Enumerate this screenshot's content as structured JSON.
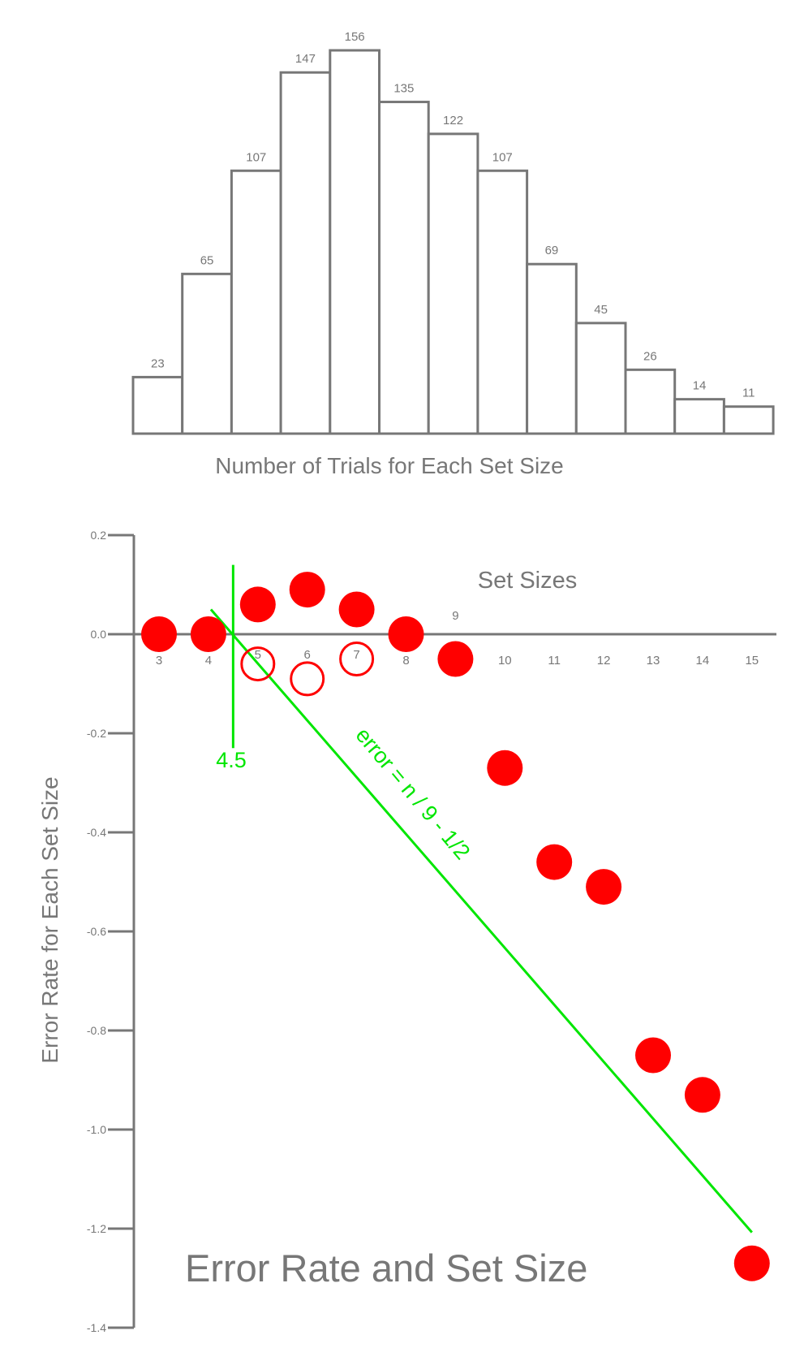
{
  "chart_data": [
    {
      "type": "bar",
      "title": "Number of Trials for Each Set Size",
      "categories": [
        "3",
        "4",
        "5",
        "6",
        "7",
        "8",
        "9",
        "10",
        "11",
        "12",
        "13",
        "14",
        "15"
      ],
      "values": [
        23,
        65,
        107,
        147,
        156,
        135,
        122,
        107,
        69,
        45,
        26,
        14,
        11
      ],
      "ylim": [
        0,
        156
      ]
    },
    {
      "type": "scatter",
      "title": "Error Rate and Set Size",
      "xlabel": "Set Sizes",
      "ylabel": "Error Rate for Each Set Size",
      "ylim": [
        -1.4,
        0.2
      ],
      "yticks": [
        "0.2",
        "0.0",
        "-0.2",
        "-0.4",
        "-0.6",
        "-0.8",
        "-1.0",
        "-1.2",
        "-1.4"
      ],
      "xticks": [
        "3",
        "4",
        "5",
        "6",
        "7",
        "8",
        "9",
        "10",
        "11",
        "12",
        "13",
        "14",
        "15"
      ],
      "series": [
        {
          "name": "filled",
          "color": "#ff0000",
          "x": [
            3,
            4,
            5,
            6,
            7,
            8,
            9,
            10,
            11,
            12,
            13,
            14,
            15
          ],
          "y": [
            0.0,
            0.0,
            0.06,
            0.09,
            0.05,
            0.0,
            -0.05,
            -0.27,
            -0.46,
            -0.51,
            -0.85,
            -0.93,
            -1.27
          ]
        },
        {
          "name": "open",
          "color": "#ff0000",
          "x": [
            5,
            6,
            7
          ],
          "y": [
            -0.06,
            -0.09,
            -0.05
          ]
        }
      ],
      "annotations": {
        "threshold_label": "4.5",
        "threshold_x": 4.5,
        "fit_label": "error = n / 9 - 1/2",
        "fit_color": "#00e600"
      }
    }
  ]
}
